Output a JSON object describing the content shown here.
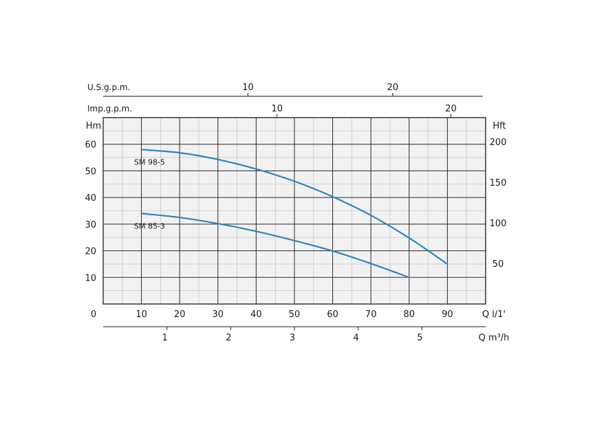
{
  "chart_data": {
    "type": "line",
    "x_axis_primary": {
      "label": "Q",
      "unit": "l/1'",
      "range": [
        0,
        100
      ],
      "ticks": [
        "10",
        "20",
        "30",
        "40",
        "50",
        "60",
        "70",
        "80",
        "90"
      ],
      "origin_label": "0"
    },
    "x_axis_m3h": {
      "label": "Q",
      "unit": "m³/h",
      "ticks": [
        "1",
        "2",
        "3",
        "4",
        "5"
      ],
      "values": [
        1,
        2,
        3,
        4,
        5
      ]
    },
    "x_axis_usgpm": {
      "label": "U.S.g.p.m.",
      "ticks": [
        "10",
        "20"
      ],
      "values": [
        10,
        20
      ]
    },
    "x_axis_impgpm": {
      "label": "Imp.g.p.m.",
      "ticks": [
        "10",
        "20"
      ],
      "values": [
        10,
        20
      ]
    },
    "y_axis_left": {
      "label": "Hm",
      "range": [
        0,
        70
      ],
      "ticks": [
        "10",
        "20",
        "30",
        "40",
        "50",
        "60"
      ]
    },
    "y_axis_right": {
      "label": "Hft",
      "ticks": [
        "50",
        "100",
        "150",
        "200"
      ],
      "values": [
        50,
        100,
        150,
        200
      ]
    },
    "grid": true,
    "series": [
      {
        "name": "SM 98-5",
        "color": "#2b86c1",
        "x": [
          10,
          20,
          30,
          40,
          50,
          60,
          70,
          80,
          90
        ],
        "y": [
          58,
          56.8,
          54.3,
          50.7,
          46.1,
          40.3,
          33.3,
          24.8,
          15
        ]
      },
      {
        "name": "SM 85-3",
        "color": "#2b86c1",
        "x": [
          10,
          20,
          30,
          40,
          50,
          60,
          70,
          80
        ],
        "y": [
          34,
          32.5,
          30.2,
          27.3,
          23.8,
          19.9,
          15.2,
          10
        ]
      }
    ]
  }
}
